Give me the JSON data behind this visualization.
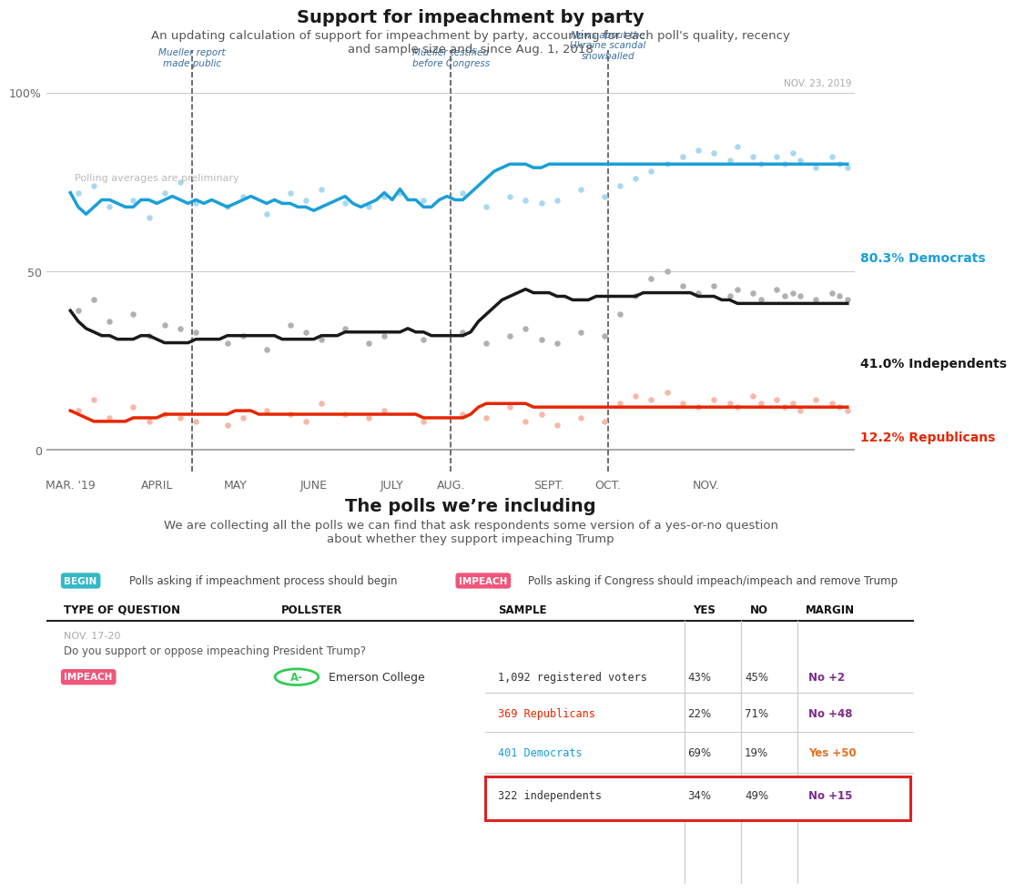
{
  "title": "Support for impeachment by party",
  "subtitle": "An updating calculation of support for impeachment by party, accounting for each poll's quality, recency\nand sample size and, since Aug. 1, 2018",
  "chart_date_label": "NOV. 23, 2019",
  "preliminary_note": "Polling averages are preliminary",
  "xticklabels": [
    "MAR. '19",
    "APRIL",
    "MAY",
    "JUNE",
    "JULY",
    "AUG.",
    "SEPT.",
    "OCT.",
    "NOV."
  ],
  "vline_labels": [
    "Mueller report\nmade public",
    "Mueller testified\nbefore Congress",
    "News about the\nUkraine scandal\nsnowballed"
  ],
  "vline_positions": [
    1.55,
    4.85,
    6.85
  ],
  "series_labels": [
    "80.3% Democrats",
    "41.0% Independents",
    "12.2% Republicans"
  ],
  "series_colors": [
    "#1a9fd8",
    "#1a1a1a",
    "#e62600"
  ],
  "series_dot_colors": [
    "#a8d8f0",
    "#b0b0b0",
    "#f5b8a8"
  ],
  "bg_color": "#ffffff",
  "grid_color": "#cccccc",
  "dashed_color": "#555555",
  "dem_line": [
    72,
    68,
    66,
    68,
    70,
    70,
    69,
    68,
    68,
    70,
    70,
    69,
    70,
    71,
    70,
    69,
    70,
    69,
    70,
    69,
    68,
    69,
    70,
    71,
    70,
    69,
    70,
    69,
    69,
    68,
    68,
    67,
    68,
    69,
    70,
    71,
    69,
    68,
    69,
    70,
    72,
    70,
    73,
    70,
    70,
    68,
    68,
    70,
    71,
    70,
    70,
    72,
    74,
    76,
    78,
    79,
    80,
    80,
    80,
    79,
    79,
    80,
    80,
    80,
    80,
    80,
    80,
    80,
    80,
    80,
    80,
    80,
    80,
    80,
    80,
    80,
    80,
    80,
    80,
    80,
    80,
    80,
    80,
    80,
    80,
    80,
    80,
    80,
    80,
    80,
    80,
    80,
    80,
    80,
    80,
    80,
    80,
    80,
    80,
    80
  ],
  "ind_line": [
    39,
    36,
    34,
    33,
    32,
    32,
    31,
    31,
    31,
    32,
    32,
    31,
    30,
    30,
    30,
    30,
    31,
    31,
    31,
    31,
    32,
    32,
    32,
    32,
    32,
    32,
    32,
    31,
    31,
    31,
    31,
    31,
    32,
    32,
    32,
    33,
    33,
    33,
    33,
    33,
    33,
    33,
    33,
    34,
    33,
    33,
    32,
    32,
    32,
    32,
    32,
    33,
    36,
    38,
    40,
    42,
    43,
    44,
    45,
    44,
    44,
    44,
    43,
    43,
    42,
    42,
    42,
    43,
    43,
    43,
    43,
    43,
    43,
    44,
    44,
    44,
    44,
    44,
    44,
    44,
    43,
    43,
    43,
    42,
    42,
    41,
    41,
    41,
    41,
    41,
    41,
    41,
    41,
    41,
    41,
    41,
    41,
    41,
    41,
    41
  ],
  "rep_line": [
    11,
    10,
    9,
    8,
    8,
    8,
    8,
    8,
    9,
    9,
    9,
    9,
    10,
    10,
    10,
    10,
    10,
    10,
    10,
    10,
    10,
    11,
    11,
    11,
    10,
    10,
    10,
    10,
    10,
    10,
    10,
    10,
    10,
    10,
    10,
    10,
    10,
    10,
    10,
    10,
    10,
    10,
    10,
    10,
    10,
    9,
    9,
    9,
    9,
    9,
    9,
    10,
    12,
    13,
    13,
    13,
    13,
    13,
    13,
    12,
    12,
    12,
    12,
    12,
    12,
    12,
    12,
    12,
    12,
    12,
    12,
    12,
    12,
    12,
    12,
    12,
    12,
    12,
    12,
    12,
    12,
    12,
    12,
    12,
    12,
    12,
    12,
    12,
    12,
    12,
    12,
    12,
    12,
    12,
    12,
    12,
    12,
    12,
    12,
    12
  ],
  "dem_dots_x": [
    0.1,
    0.3,
    0.5,
    0.8,
    1.0,
    1.2,
    1.4,
    1.6,
    2.0,
    2.2,
    2.5,
    2.8,
    3.0,
    3.2,
    3.5,
    3.8,
    4.0,
    4.2,
    4.5,
    5.0,
    5.3,
    5.6,
    5.8,
    6.0,
    6.2,
    6.5,
    6.8,
    7.0,
    7.2,
    7.4,
    7.6,
    7.8,
    8.0,
    8.2,
    8.4,
    8.5,
    8.7,
    8.8,
    9.0,
    9.1,
    9.2,
    9.3,
    9.5,
    9.7,
    9.8,
    9.9
  ],
  "dem_dots_y": [
    72,
    74,
    68,
    70,
    65,
    72,
    75,
    69,
    68,
    71,
    66,
    72,
    70,
    73,
    69,
    68,
    71,
    72,
    70,
    72,
    68,
    71,
    70,
    69,
    70,
    73,
    71,
    74,
    76,
    78,
    80,
    82,
    84,
    83,
    81,
    85,
    82,
    80,
    82,
    80,
    83,
    81,
    79,
    82,
    80,
    79
  ],
  "ind_dots_x": [
    0.1,
    0.3,
    0.5,
    0.8,
    1.0,
    1.2,
    1.4,
    1.6,
    2.0,
    2.2,
    2.5,
    2.8,
    3.0,
    3.2,
    3.5,
    3.8,
    4.0,
    4.5,
    5.0,
    5.3,
    5.6,
    5.8,
    6.0,
    6.2,
    6.5,
    6.8,
    7.0,
    7.2,
    7.4,
    7.6,
    7.8,
    8.0,
    8.2,
    8.4,
    8.5,
    8.7,
    8.8,
    9.0,
    9.1,
    9.2,
    9.3,
    9.5,
    9.7,
    9.8,
    9.9
  ],
  "ind_dots_y": [
    39,
    42,
    36,
    38,
    32,
    35,
    34,
    33,
    30,
    32,
    28,
    35,
    33,
    31,
    34,
    30,
    32,
    31,
    33,
    30,
    32,
    34,
    31,
    30,
    33,
    32,
    38,
    43,
    48,
    50,
    46,
    44,
    46,
    43,
    45,
    44,
    42,
    45,
    43,
    44,
    43,
    42,
    44,
    43,
    42
  ],
  "rep_dots_x": [
    0.1,
    0.3,
    0.5,
    0.8,
    1.0,
    1.2,
    1.4,
    1.6,
    2.0,
    2.2,
    2.5,
    2.8,
    3.0,
    3.2,
    3.5,
    3.8,
    4.0,
    4.5,
    5.0,
    5.3,
    5.6,
    5.8,
    6.0,
    6.2,
    6.5,
    6.8,
    7.0,
    7.2,
    7.4,
    7.6,
    7.8,
    8.0,
    8.2,
    8.4,
    8.5,
    8.7,
    8.8,
    9.0,
    9.1,
    9.2,
    9.3,
    9.5,
    9.7,
    9.8,
    9.9
  ],
  "rep_dots_y": [
    11,
    14,
    9,
    12,
    8,
    10,
    9,
    8,
    7,
    9,
    11,
    10,
    8,
    13,
    10,
    9,
    11,
    8,
    10,
    9,
    12,
    8,
    10,
    7,
    9,
    8,
    13,
    15,
    14,
    16,
    13,
    12,
    14,
    13,
    12,
    15,
    13,
    14,
    12,
    13,
    11,
    14,
    13,
    12,
    11
  ],
  "table_title": "The polls we’re including",
  "table_subtitle": "We are collecting all the polls we can find that ask respondents some version of a yes-or-no question\nabout whether they support impeaching Trump",
  "begin_label": "BEGIN",
  "begin_color": "#32b8c6",
  "impeach_label": "IMPEACH",
  "impeach_color": "#f0557a",
  "begin_desc": "Polls asking if impeachment process should begin",
  "impeach_desc": "Polls asking if Congress should impeach/impeach and remove Trump",
  "col_headers": [
    "TYPE OF QUESTION",
    "POLLSTER",
    "SAMPLE",
    "YES",
    "NO",
    "MARGIN"
  ],
  "poll_date": "NOV. 17-20",
  "poll_question": "Do you support or oppose impeaching President Trump?",
  "poll_type": "IMPEACH",
  "poll_grade": "A-",
  "pollster_name": "Emerson College",
  "rows": [
    {
      "sample": "1,092 registered voters",
      "yes": "43%",
      "no": "45%",
      "margin": "No +2",
      "margin_color": "#7b2d8b",
      "sample_color": "#333333",
      "highlight": false
    },
    {
      "sample": "369 Republicans",
      "yes": "22%",
      "no": "71%",
      "margin": "No +48",
      "margin_color": "#7b2d8b",
      "sample_color": "#e62600",
      "highlight": false
    },
    {
      "sample": "401 Democrats",
      "yes": "69%",
      "no": "19%",
      "margin": "Yes +50",
      "margin_color": "#e07020",
      "sample_color": "#1a9fd8",
      "highlight": false
    },
    {
      "sample": "322 independents",
      "yes": "34%",
      "no": "49%",
      "margin": "No +15",
      "margin_color": "#7b2d8b",
      "sample_color": "#333333",
      "highlight": true
    }
  ]
}
